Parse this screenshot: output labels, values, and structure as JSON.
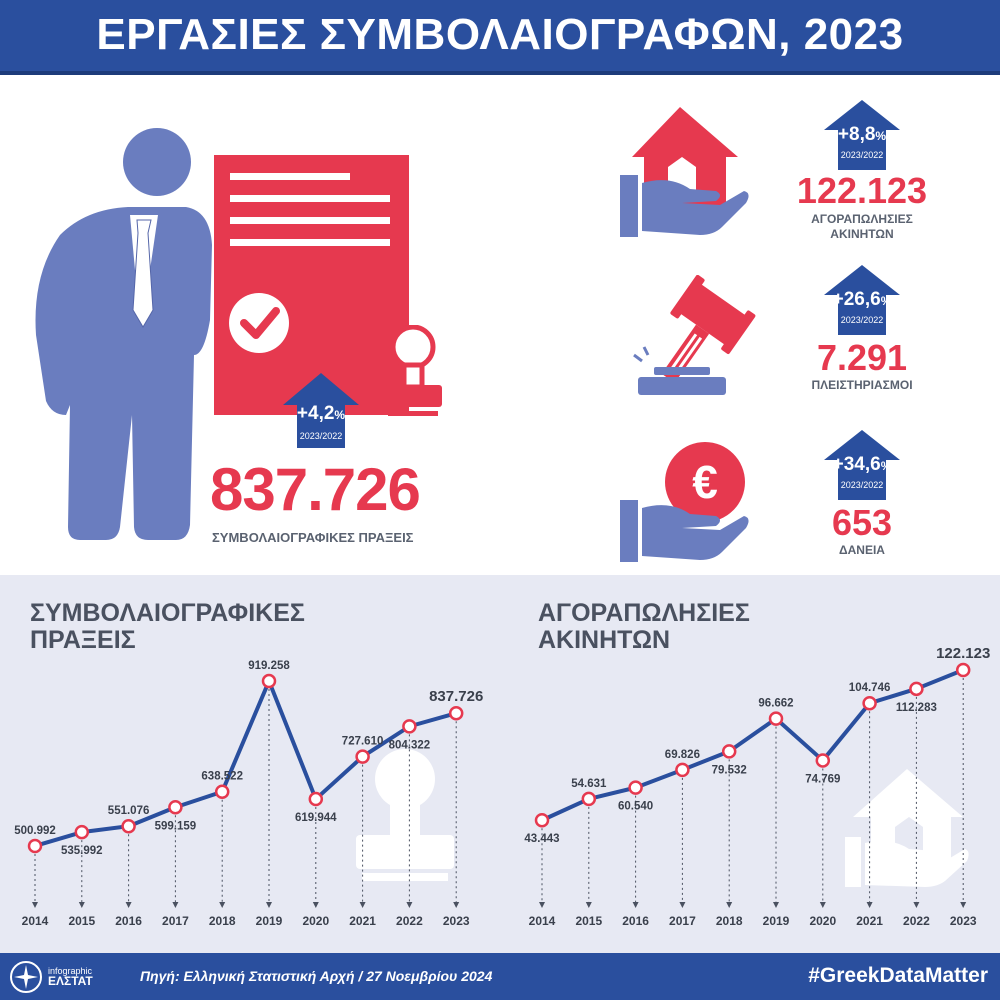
{
  "header": {
    "title": "ΕΡΓΑΣΙΕΣ ΣΥΜΒΟΛΑΙΟΓΡΑΦΩΝ, 2023"
  },
  "colors": {
    "blue": "#2a4f9e",
    "red": "#e6394f",
    "figure": "#6a7dbf",
    "grey_bg": "#e7e9f3"
  },
  "main_stat": {
    "change": "+4,2",
    "change_unit": "%",
    "period": "2023/2022",
    "value": "837.726",
    "label": "ΣΥΜΒΟΛΑΙΟΓΡΑΦΙΚΕΣ ΠΡΑΞΕΙΣ",
    "icons": [
      "businessman-icon",
      "document-check-icon",
      "stamp-icon"
    ]
  },
  "side_stats": [
    {
      "icon": "house-in-hand-icon",
      "change": "+8,8",
      "change_unit": "%",
      "period": "2023/2022",
      "value": "122.123",
      "label_line1": "ΑΓΟΡΑΠΩΛΗΣΙΕΣ",
      "label_line2": "ΑΚΙΝΗΤΩΝ"
    },
    {
      "icon": "auction-gavel-icon",
      "change": "+26,6",
      "change_unit": "%",
      "period": "2023/2022",
      "value": "7.291",
      "label_line1": "ΠΛΕΙΣΤΗΡΙΑΣΜΟΙ",
      "label_line2": ""
    },
    {
      "icon": "euro-in-hand-icon",
      "change": "+34,6",
      "change_unit": "%",
      "period": "2023/2022",
      "value": "653",
      "label_line1": "ΔΑΝΕΙΑ",
      "label_line2": ""
    }
  ],
  "chart_data": [
    {
      "type": "line",
      "title_line1": "ΣΥΜΒΟΛΑΙΟΓΡΑΦΙΚΕΣ",
      "title_line2": "ΠΡΑΞΕΙΣ",
      "x": [
        "2014",
        "2015",
        "2016",
        "2017",
        "2018",
        "2019",
        "2020",
        "2021",
        "2022",
        "2023"
      ],
      "values": [
        500992,
        535992,
        551076,
        599159,
        638522,
        919258,
        619944,
        727610,
        804322,
        837726
      ],
      "labels": [
        "500.992",
        "535.992",
        "551.076",
        "599.159",
        "638.522",
        "919.258",
        "619.944",
        "727.610",
        "804.322",
        "837.726"
      ],
      "label_pos": [
        "above",
        "below",
        "above",
        "below",
        "above",
        "above",
        "below",
        "above",
        "below",
        "above"
      ],
      "ylim": [
        440000,
        960000
      ],
      "grid": false,
      "watermark_icon": "stamp-icon"
    },
    {
      "type": "line",
      "title_line1": "ΑΓΟΡΑΠΩΛΗΣΙΕΣ",
      "title_line2": "ΑΚΙΝΗΤΩΝ",
      "x": [
        "2014",
        "2015",
        "2016",
        "2017",
        "2018",
        "2019",
        "2020",
        "2021",
        "2022",
        "2023"
      ],
      "values": [
        43443,
        54631,
        60540,
        69826,
        79532,
        96662,
        74769,
        104746,
        112283,
        122123
      ],
      "labels": [
        "43.443",
        "54.631",
        "60.540",
        "69.826",
        "79.532",
        "96.662",
        "74.769",
        "104.746",
        "112.283",
        "122.123"
      ],
      "label_pos": [
        "below",
        "above",
        "below",
        "above",
        "below",
        "above",
        "below",
        "above",
        "below",
        "above"
      ],
      "ylim": [
        20000,
        130000
      ],
      "grid": false,
      "watermark_icon": "house-in-hand-icon"
    }
  ],
  "footer": {
    "logo_line1": "infographic",
    "logo_line2": "ΕΛΣΤΑΤ",
    "source": "Πηγή: Ελληνική Στατιστική Αρχή  / 27 Νοεμβρίου 2024",
    "hashtag": "#GreekDataMatter"
  }
}
